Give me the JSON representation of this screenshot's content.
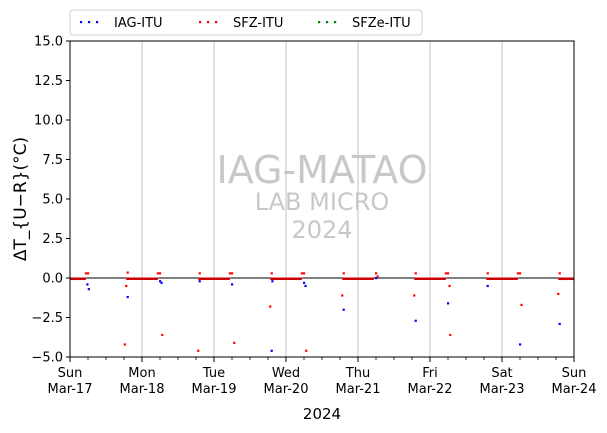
{
  "chart_data": {
    "type": "scatter",
    "title": "",
    "xlabel": "2024",
    "ylabel": "ΔT_{U−R}(°C)",
    "ylim": [
      -5,
      15
    ],
    "yticks": [
      -5.0,
      -2.5,
      0.0,
      2.5,
      5.0,
      7.5,
      10.0,
      12.5,
      15.0
    ],
    "ytick_labels": [
      "−5.0",
      "−2.5",
      "0.0",
      "2.5",
      "5.0",
      "7.5",
      "10.0",
      "12.5",
      "15.0"
    ],
    "xlim": [
      "2024-03-17",
      "2024-03-24"
    ],
    "xtick_labels": [
      {
        "day": "Sun",
        "date": "Mar-17"
      },
      {
        "day": "Mon",
        "date": "Mar-18"
      },
      {
        "day": "Tue",
        "date": "Mar-19"
      },
      {
        "day": "Wed",
        "date": "Mar-20"
      },
      {
        "day": "Thu",
        "date": "Mar-21"
      },
      {
        "day": "Fri",
        "date": "Mar-22"
      },
      {
        "day": "Sat",
        "date": "Mar-23"
      },
      {
        "day": "Sun",
        "date": "Mar-24"
      }
    ],
    "grid": "vertical-at-day-ticks",
    "zero_line": true,
    "legend_position": "top-left-above",
    "watermark": [
      "IAG-MATAO",
      "LAB MICRO",
      "2024"
    ],
    "series": [
      {
        "name": "IAG-ITU",
        "color": "#0000ff",
        "points": [
          {
            "x": 0.24,
            "y": -0.4
          },
          {
            "x": 0.26,
            "y": -0.7
          },
          {
            "x": 0.8,
            "y": -1.2
          },
          {
            "x": 1.25,
            "y": -0.2
          },
          {
            "x": 1.27,
            "y": -0.3
          },
          {
            "x": 1.8,
            "y": -0.2
          },
          {
            "x": 2.25,
            "y": -0.4
          },
          {
            "x": 2.8,
            "y": -4.6
          },
          {
            "x": 2.81,
            "y": -0.2
          },
          {
            "x": 3.25,
            "y": -0.3
          },
          {
            "x": 3.27,
            "y": -0.5
          },
          {
            "x": 3.8,
            "y": -2.0
          },
          {
            "x": 4.25,
            "y": 0.0
          },
          {
            "x": 4.8,
            "y": -2.7
          },
          {
            "x": 5.25,
            "y": -1.6
          },
          {
            "x": 5.8,
            "y": -0.5
          },
          {
            "x": 6.25,
            "y": -4.2
          },
          {
            "x": 6.8,
            "y": -2.9
          }
        ]
      },
      {
        "name": "SFZ-ITU",
        "color": "#ff0000",
        "points": [
          {
            "x": 0.22,
            "y": 0.3
          },
          {
            "x": 0.25,
            "y": 0.3
          },
          {
            "x": 0.76,
            "y": -4.2
          },
          {
            "x": 0.78,
            "y": -0.5
          },
          {
            "x": 0.8,
            "y": 0.35
          },
          {
            "x": 1.22,
            "y": 0.3
          },
          {
            "x": 1.25,
            "y": 0.3
          },
          {
            "x": 1.28,
            "y": -3.6
          },
          {
            "x": 1.78,
            "y": -4.6
          },
          {
            "x": 1.8,
            "y": 0.3
          },
          {
            "x": 2.22,
            "y": 0.3
          },
          {
            "x": 2.25,
            "y": 0.3
          },
          {
            "x": 2.28,
            "y": -4.1
          },
          {
            "x": 2.78,
            "y": -1.8
          },
          {
            "x": 2.8,
            "y": 0.3
          },
          {
            "x": 3.22,
            "y": 0.3
          },
          {
            "x": 3.25,
            "y": 0.3
          },
          {
            "x": 3.28,
            "y": -4.6
          },
          {
            "x": 3.78,
            "y": -1.1
          },
          {
            "x": 3.8,
            "y": 0.3
          },
          {
            "x": 4.25,
            "y": 0.3
          },
          {
            "x": 4.27,
            "y": 0.1
          },
          {
            "x": 4.78,
            "y": -1.1
          },
          {
            "x": 4.8,
            "y": 0.3
          },
          {
            "x": 5.22,
            "y": 0.3
          },
          {
            "x": 5.25,
            "y": 0.3
          },
          {
            "x": 5.27,
            "y": -0.5
          },
          {
            "x": 5.28,
            "y": -3.6
          },
          {
            "x": 5.8,
            "y": 0.3
          },
          {
            "x": 6.22,
            "y": 0.3
          },
          {
            "x": 6.25,
            "y": 0.3
          },
          {
            "x": 6.27,
            "y": -1.7
          },
          {
            "x": 6.78,
            "y": -1.0
          },
          {
            "x": 6.8,
            "y": 0.3
          }
        ]
      },
      {
        "name": "SFZe-ITU",
        "color": "#008000",
        "points": []
      }
    ],
    "baseline_segments": [
      {
        "x0": 0.0,
        "x1": 0.22,
        "y": -0.05
      },
      {
        "x0": 0.78,
        "x1": 1.22,
        "y": -0.05
      },
      {
        "x0": 1.78,
        "x1": 2.22,
        "y": -0.05
      },
      {
        "x0": 2.78,
        "x1": 3.22,
        "y": -0.05
      },
      {
        "x0": 3.78,
        "x1": 4.22,
        "y": -0.05
      },
      {
        "x0": 4.78,
        "x1": 5.22,
        "y": -0.05
      },
      {
        "x0": 5.78,
        "x1": 6.22,
        "y": -0.05
      },
      {
        "x0": 6.78,
        "x1": 7.0,
        "y": -0.05
      }
    ]
  }
}
